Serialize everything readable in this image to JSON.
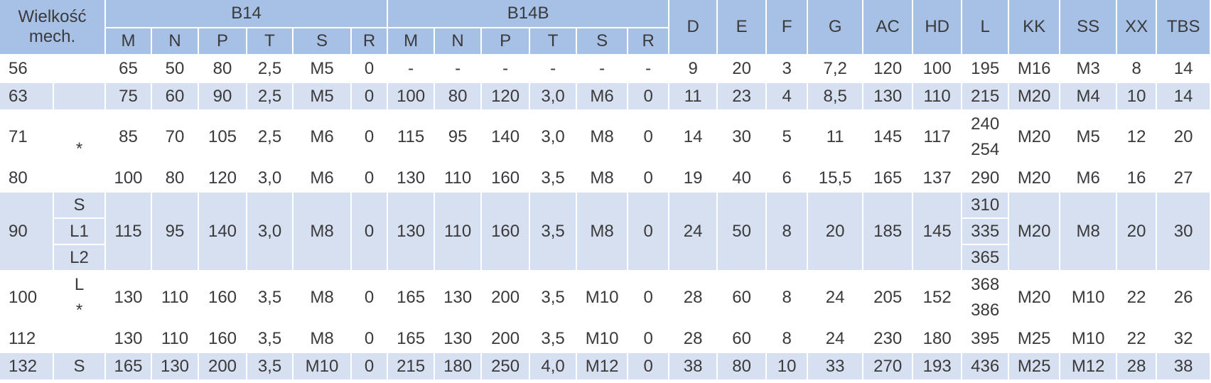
{
  "header": {
    "size_label": "Wielkość mech.",
    "groups": [
      {
        "name": "B14",
        "columns": [
          "M",
          "N",
          "P",
          "T",
          "S",
          "R"
        ]
      },
      {
        "name": "B14B",
        "columns": [
          "M",
          "N",
          "P",
          "T",
          "S",
          "R"
        ]
      }
    ],
    "columns": [
      "D",
      "E",
      "F",
      "G",
      "AC",
      "HD",
      "L",
      "KK",
      "SS",
      "XX",
      "TBS"
    ]
  },
  "rows": [
    {
      "size": 56,
      "values": [
        65,
        50,
        80,
        "2,5",
        "M5",
        0,
        "-",
        "-",
        "-",
        "-",
        "-",
        "-",
        9,
        20,
        3,
        "7,2",
        120,
        100,
        195,
        "M16",
        "M3",
        8,
        14
      ]
    },
    {
      "size": 63,
      "shaded": true,
      "values": [
        75,
        60,
        90,
        "2,5",
        "M5",
        0,
        100,
        80,
        120,
        "3,0",
        "M6",
        0,
        11,
        23,
        4,
        "8,5",
        130,
        110,
        215,
        "M20",
        "M4",
        10,
        14
      ]
    },
    {
      "size": 71,
      "variant": "*",
      "values": [
        85,
        70,
        105,
        "2,5",
        "M6",
        0,
        115,
        95,
        140,
        "3,0",
        "M8",
        0,
        14,
        30,
        5,
        11,
        145,
        117,
        [
          240,
          254
        ],
        "M20",
        "M5",
        12,
        20
      ]
    },
    {
      "size": 80,
      "values": [
        100,
        80,
        120,
        "3,0",
        "M6",
        0,
        130,
        110,
        160,
        "3,5",
        "M8",
        0,
        19,
        40,
        6,
        "15,5",
        165,
        137,
        290,
        "M20",
        "M6",
        16,
        27
      ]
    },
    {
      "size": 90,
      "shaded": true,
      "split": true,
      "variant": [
        "S",
        "L1",
        "L2"
      ],
      "values": [
        115,
        95,
        140,
        "3,0",
        "M8",
        0,
        130,
        110,
        160,
        "3,5",
        "M8",
        0,
        24,
        50,
        8,
        20,
        185,
        145,
        [
          310,
          335,
          365
        ],
        "M20",
        "M8",
        20,
        30
      ]
    },
    {
      "size": 100,
      "variant": [
        "L",
        "*"
      ],
      "values": [
        130,
        110,
        160,
        "3,5",
        "M8",
        0,
        165,
        130,
        200,
        "3,5",
        "M10",
        0,
        28,
        60,
        8,
        24,
        205,
        152,
        [
          368,
          386
        ],
        "M20",
        "M10",
        22,
        26
      ]
    },
    {
      "size": 112,
      "values": [
        130,
        110,
        160,
        "3,5",
        "M8",
        0,
        165,
        130,
        200,
        "3,5",
        "M10",
        0,
        28,
        60,
        8,
        24,
        230,
        180,
        395,
        "M25",
        "M10",
        22,
        32
      ]
    },
    {
      "size": 132,
      "shaded": true,
      "variant": "S",
      "values": [
        165,
        130,
        200,
        "3,5",
        "M10",
        0,
        215,
        180,
        250,
        "4,0",
        "M12",
        0,
        38,
        80,
        10,
        33,
        270,
        193,
        436,
        "M25",
        "M12",
        28,
        38
      ]
    }
  ]
}
